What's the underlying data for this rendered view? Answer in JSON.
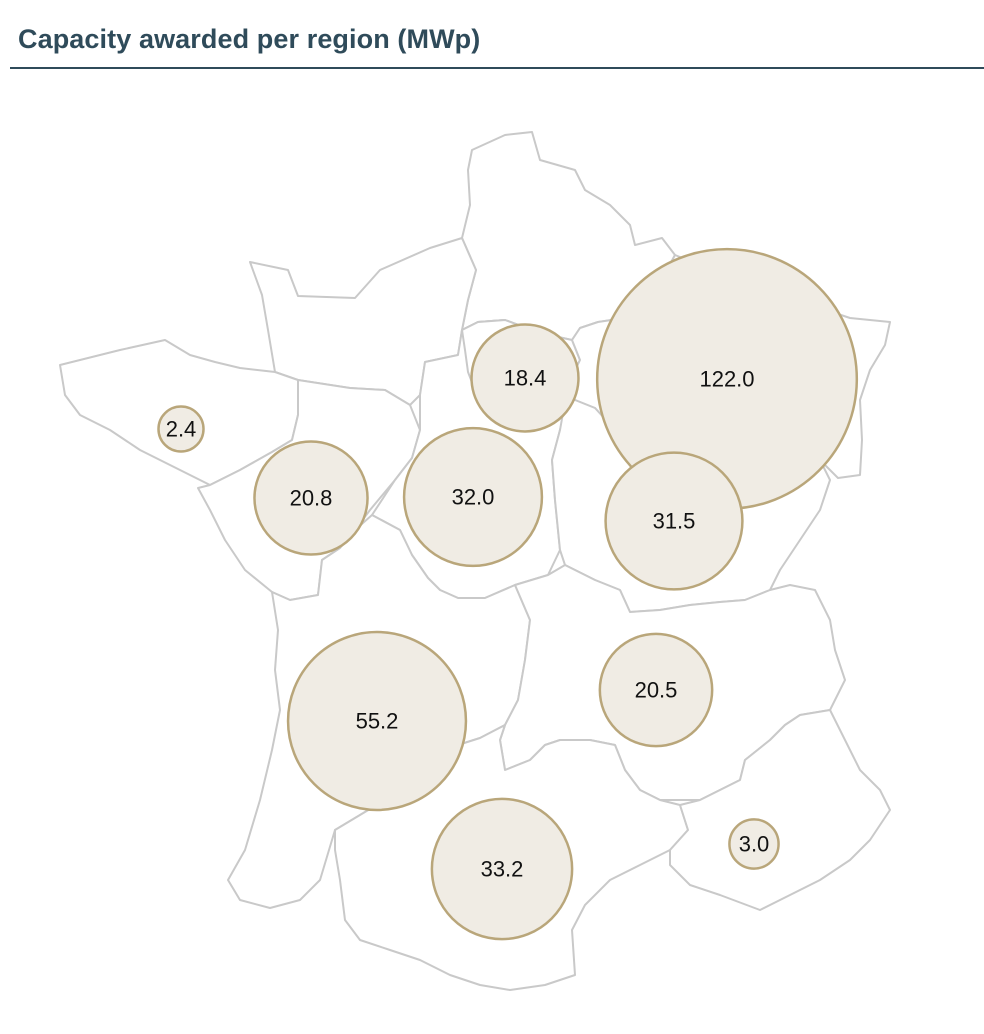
{
  "title": "Capacity awarded per region (MWp)",
  "colors": {
    "title": "#2f4b5a",
    "border": "#c9c9c9",
    "bubble_fill": "#f0ece4",
    "bubble_stroke": "#b9a67a"
  },
  "chart_data": {
    "type": "proportional-symbol-map",
    "unit": "MWp",
    "values": [
      "2.4",
      "20.8",
      "32.0",
      "18.4",
      "122.0",
      "31.5",
      "55.2",
      "20.5",
      "33.2",
      "3.0"
    ]
  }
}
